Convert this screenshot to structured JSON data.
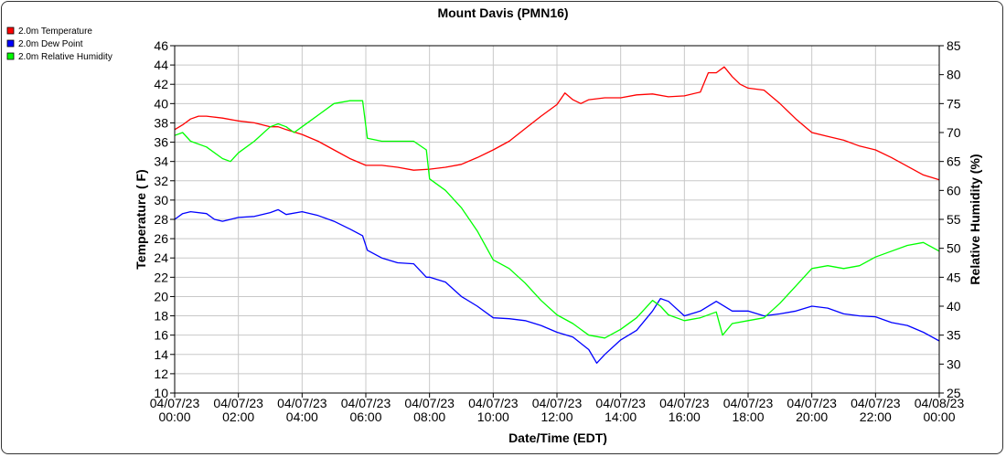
{
  "chart_data": {
    "type": "line",
    "title": "Mount Davis (PMN16)",
    "xlabel": "Date/Time (EDT)",
    "ylabel": "Temperature ( F)",
    "ylabel_right": "Relative Humidity (%)",
    "xlim_hours": [
      0,
      24
    ],
    "ylim": [
      10,
      46
    ],
    "ylim_right": [
      25,
      85
    ],
    "grid": true,
    "legend_position": "top-left",
    "x_ticks": [
      {
        "hour": 0,
        "label": "04/07/23 00:00"
      },
      {
        "hour": 2,
        "label": "04/07/23 02:00"
      },
      {
        "hour": 4,
        "label": "04/07/23 04:00"
      },
      {
        "hour": 6,
        "label": "04/07/23 06:00"
      },
      {
        "hour": 8,
        "label": "04/07/23 08:00"
      },
      {
        "hour": 10,
        "label": "04/07/23 10:00"
      },
      {
        "hour": 12,
        "label": "04/07/23 12:00"
      },
      {
        "hour": 14,
        "label": "04/07/23 14:00"
      },
      {
        "hour": 16,
        "label": "04/07/23 16:00"
      },
      {
        "hour": 18,
        "label": "04/07/23 18:00"
      },
      {
        "hour": 20,
        "label": "04/07/23 20:00"
      },
      {
        "hour": 22,
        "label": "04/07/23 22:00"
      },
      {
        "hour": 24,
        "label": "04/08/23 00:00"
      }
    ],
    "y_ticks": [
      10,
      12,
      14,
      16,
      18,
      20,
      22,
      24,
      26,
      28,
      30,
      32,
      34,
      36,
      38,
      40,
      42,
      44,
      46
    ],
    "y_ticks_right": [
      25,
      30,
      35,
      40,
      45,
      50,
      55,
      60,
      65,
      70,
      75,
      80,
      85
    ],
    "series": [
      {
        "name": "2.0m Temperature",
        "axis": "left",
        "color": "#ff0000",
        "x": [
          0,
          0.25,
          0.5,
          0.75,
          1,
          1.5,
          2,
          2.5,
          3,
          3.25,
          3.5,
          4,
          4.5,
          5,
          5.5,
          6,
          6.5,
          7,
          7.5,
          8,
          8.5,
          9,
          9.5,
          10,
          10.5,
          11,
          11.5,
          12,
          12.25,
          12.5,
          12.75,
          13,
          13.5,
          14,
          14.5,
          15,
          15.5,
          16,
          16.5,
          16.75,
          17,
          17.25,
          17.5,
          17.75,
          18,
          18.5,
          19,
          19.5,
          20,
          20.5,
          21,
          21.5,
          22,
          22.5,
          23,
          23.5,
          24
        ],
        "values": [
          37.3,
          37.8,
          38.4,
          38.7,
          38.7,
          38.5,
          38.2,
          38.0,
          37.6,
          37.6,
          37.3,
          36.8,
          36.1,
          35.2,
          34.3,
          33.6,
          33.6,
          33.4,
          33.1,
          33.2,
          33.4,
          33.7,
          34.4,
          35.2,
          36.1,
          37.4,
          38.7,
          39.9,
          41.1,
          40.4,
          40.0,
          40.4,
          40.6,
          40.6,
          40.9,
          41.0,
          40.7,
          40.8,
          41.2,
          43.2,
          43.2,
          43.8,
          42.8,
          42.0,
          41.6,
          41.4,
          40.0,
          38.4,
          37.0,
          36.6,
          36.2,
          35.6,
          35.2,
          34.4,
          33.5,
          32.6,
          32.1
        ]
      },
      {
        "name": "2.0m Dew Point",
        "axis": "left",
        "color": "#0000ff",
        "x": [
          0,
          0.25,
          0.5,
          1,
          1.25,
          1.5,
          2,
          2.5,
          3,
          3.25,
          3.5,
          4,
          4.5,
          5,
          5.5,
          5.9,
          6.05,
          6.5,
          7,
          7.5,
          7.9,
          8,
          8.5,
          9,
          9.5,
          10,
          10.5,
          11,
          11.5,
          12,
          12.5,
          13,
          13.25,
          13.5,
          14,
          14.5,
          15,
          15.25,
          15.5,
          16,
          16.5,
          17,
          17.5,
          18,
          18.5,
          19,
          19.5,
          20,
          20.5,
          21,
          21.5,
          22,
          22.5,
          23,
          23.5,
          24
        ],
        "values": [
          28.0,
          28.6,
          28.8,
          28.6,
          28.0,
          27.8,
          28.2,
          28.3,
          28.7,
          29.0,
          28.5,
          28.8,
          28.4,
          27.8,
          27.0,
          26.3,
          24.8,
          24.0,
          23.5,
          23.4,
          22.0,
          22.0,
          21.5,
          20.0,
          19.0,
          17.8,
          17.7,
          17.5,
          17.0,
          16.3,
          15.8,
          14.5,
          13.1,
          14.0,
          15.5,
          16.5,
          18.5,
          19.8,
          19.5,
          18.0,
          18.5,
          19.5,
          18.5,
          18.5,
          18.0,
          18.2,
          18.5,
          19.0,
          18.8,
          18.2,
          18.0,
          17.9,
          17.3,
          17.0,
          16.3,
          15.4
        ]
      },
      {
        "name": "2.0m Relative Humidity",
        "axis": "right",
        "color": "#00ff00",
        "x": [
          0,
          0.25,
          0.5,
          1,
          1.5,
          1.75,
          2,
          2.5,
          3,
          3.25,
          3.5,
          3.75,
          4,
          4.5,
          5,
          5.5,
          5.9,
          6.05,
          6.5,
          7,
          7.5,
          7.9,
          8,
          8.5,
          9,
          9.5,
          10,
          10.5,
          11,
          11.5,
          12,
          12.5,
          13,
          13.5,
          14,
          14.5,
          15,
          15.25,
          15.5,
          16,
          16.5,
          17,
          17.2,
          17.5,
          18,
          18.5,
          19,
          19.5,
          20,
          20.5,
          21,
          21.5,
          22,
          22.5,
          23,
          23.5,
          24
        ],
        "values": [
          69.5,
          70.0,
          68.5,
          67.5,
          65.5,
          65.0,
          66.5,
          68.5,
          71.0,
          71.5,
          71.0,
          70.0,
          71.0,
          73.0,
          75.0,
          75.5,
          75.5,
          69.0,
          68.5,
          68.5,
          68.5,
          67.0,
          62.0,
          60.0,
          57.0,
          53.0,
          48.0,
          46.5,
          44.0,
          41.0,
          38.5,
          37.0,
          35.0,
          34.5,
          36.0,
          38.0,
          41.0,
          40.0,
          38.5,
          37.5,
          38.0,
          39.0,
          35.0,
          37.0,
          37.5,
          38.0,
          40.5,
          43.5,
          46.5,
          47.0,
          46.5,
          47.0,
          48.5,
          49.5,
          50.5,
          51.0,
          49.5
        ]
      }
    ]
  }
}
